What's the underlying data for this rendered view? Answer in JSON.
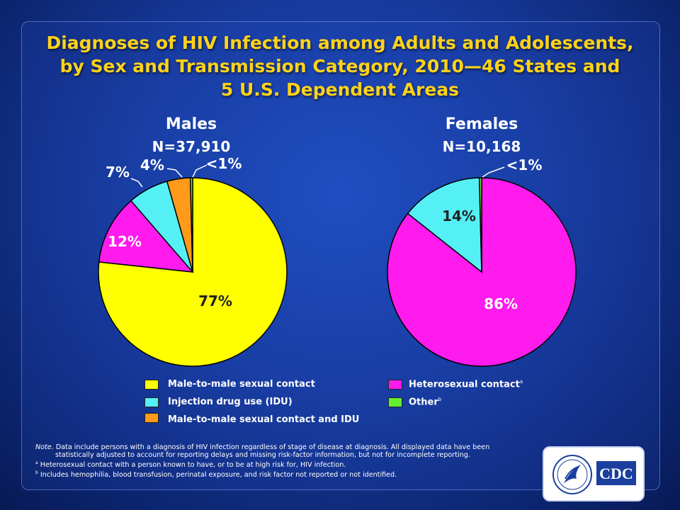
{
  "title": [
    "Diagnoses of HIV Infection among Adults and Adolescents,",
    "by Sex and Transmission Category, 2010—46 States and",
    "5 U.S. Dependent Areas"
  ],
  "colors": {
    "male_to_male": "#ffff00",
    "idu": "#55f0f5",
    "male_to_male_idu": "#ff9a1a",
    "heterosexual": "#ff1aee",
    "other": "#66ee33"
  },
  "chart_data": [
    {
      "type": "pie",
      "title": "Males",
      "subtitle": "N=37,910",
      "slices": [
        {
          "category": "Male-to-male sexual contact",
          "value": 77,
          "label": "77%",
          "color": "#ffff00"
        },
        {
          "category": "Heterosexual contact",
          "value": 12,
          "label": "12%",
          "color": "#ff1aee"
        },
        {
          "category": "Injection drug use (IDU)",
          "value": 7,
          "label": "7%",
          "color": "#55f0f5"
        },
        {
          "category": "Male-to-male sexual contact and IDU",
          "value": 4,
          "label": "4%",
          "color": "#ff9a1a"
        },
        {
          "category": "Other",
          "value": 0.4,
          "label": "<1%",
          "color": "#66ee33"
        }
      ]
    },
    {
      "type": "pie",
      "title": "Females",
      "subtitle": "N=10,168",
      "slices": [
        {
          "category": "Heterosexual contact",
          "value": 86,
          "label": "86%",
          "color": "#ff1aee"
        },
        {
          "category": "Injection drug use (IDU)",
          "value": 14,
          "label": "14%",
          "color": "#55f0f5"
        },
        {
          "category": "Other",
          "value": 0.4,
          "label": "<1%",
          "color": "#66ee33"
        }
      ]
    }
  ],
  "legend": {
    "items": [
      {
        "label": "Male-to-male sexual contact",
        "color": "#ffff00",
        "sup": ""
      },
      {
        "label": "Injection drug use (IDU)",
        "color": "#55f0f5",
        "sup": ""
      },
      {
        "label": "Male-to-male sexual contact and IDU",
        "color": "#ff9a1a",
        "sup": ""
      },
      {
        "label": "Heterosexual contact",
        "color": "#ff1aee",
        "sup": "a"
      },
      {
        "label": "Other",
        "color": "#66ee33",
        "sup": "b"
      }
    ]
  },
  "notes": {
    "note_prefix": "Note.",
    "note_line1": " Data include persons with a diagnosis of HIV infection regardless of stage of disease at diagnosis.  All displayed data have been",
    "note_line2": "statistically adjusted to account for reporting delays  and missing risk-factor information, but not for incomplete reporting.",
    "footnote_a_mark": "a",
    "footnote_a": " Heterosexual contact with a person known to have, or to be at high risk for, HIV infection.",
    "footnote_b_mark": "b",
    "footnote_b": " Includes hemophilia, blood transfusion, perinatal exposure, and risk factor not reported or not identified."
  },
  "logo": {
    "text": "CDC",
    "icon": "hhs-eagle-icon"
  }
}
